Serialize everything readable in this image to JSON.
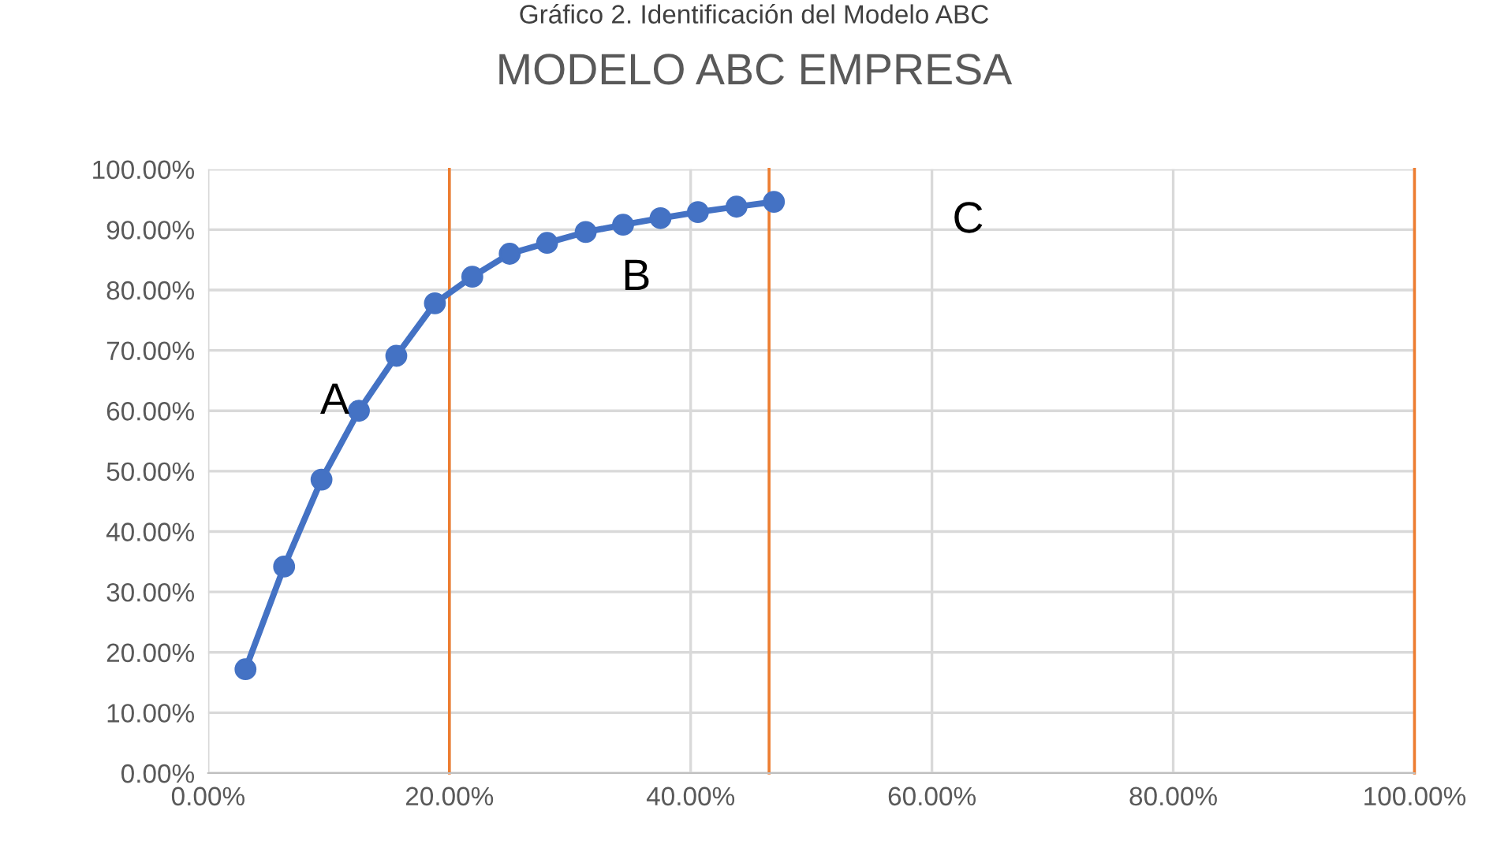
{
  "chart_data": {
    "type": "line",
    "title": "MODELO ABC EMPRESA",
    "subtitle": "Gráfico 2. Identificación del Modelo ABC",
    "x": [
      3.1,
      6.3,
      9.4,
      12.5,
      15.6,
      18.8,
      21.9,
      25.0,
      28.1,
      31.3,
      34.4,
      37.5,
      40.6,
      43.8,
      46.9
    ],
    "series": [
      {
        "color": "#4472c4",
        "values": [
          17.2,
          34.2,
          48.6,
          60.0,
          69.1,
          77.8,
          82.2,
          86.0,
          87.8,
          89.6,
          90.8,
          91.9,
          92.9,
          93.8,
          94.6
        ]
      }
    ],
    "marker": "circle",
    "line_style": "solid",
    "xlim": [
      0,
      100
    ],
    "xticks": [
      {
        "value": 0,
        "label": "0.00%"
      },
      {
        "value": 20,
        "label": "20.00%"
      },
      {
        "value": 40,
        "label": "40.00%"
      },
      {
        "value": 60,
        "label": "60.00%"
      },
      {
        "value": 80,
        "label": "80.00%"
      },
      {
        "value": 100,
        "label": "100.00%"
      }
    ],
    "ylim": [
      0,
      100
    ],
    "yticks": [
      {
        "value": 0,
        "label": "0.00%"
      },
      {
        "value": 10,
        "label": "10.00%"
      },
      {
        "value": 20,
        "label": "20.00%"
      },
      {
        "value": 30,
        "label": "30.00%"
      },
      {
        "value": 40,
        "label": "40.00%"
      },
      {
        "value": 50,
        "label": "50.00%"
      },
      {
        "value": 60,
        "label": "60.00%"
      },
      {
        "value": 70,
        "label": "70.00%"
      },
      {
        "value": 80,
        "label": "80.00%"
      },
      {
        "value": 90,
        "label": "90.00%"
      },
      {
        "value": 100,
        "label": "100.00%"
      }
    ],
    "grid": true,
    "legend": false,
    "ref_lines": [
      {
        "axis": "x",
        "value": 20,
        "color": "#ed7d31"
      },
      {
        "axis": "x",
        "value": 46.5,
        "color": "#ed7d31"
      },
      {
        "axis": "x",
        "value": 100,
        "color": "#ed7d31"
      }
    ],
    "annotations": [
      "A",
      "B",
      "C"
    ]
  }
}
